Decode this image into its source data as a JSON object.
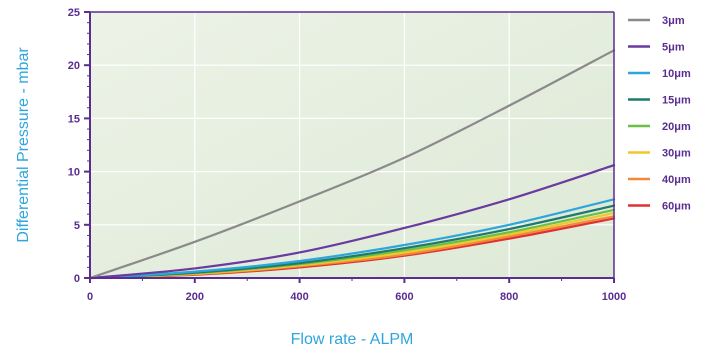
{
  "chart_data": {
    "type": "line",
    "title": "",
    "xlabel": "Flow rate - ALPM",
    "ylabel": "Differential Pressure - mbar",
    "xlim": [
      0,
      1000
    ],
    "ylim": [
      0,
      25
    ],
    "x_ticks": [
      0,
      200,
      400,
      600,
      800,
      1000
    ],
    "y_ticks": [
      0,
      5,
      10,
      15,
      20,
      25
    ],
    "grid": true,
    "legend_position": "right",
    "colors": {
      "plot_background": "#e6efe0",
      "grid": "#ffffff",
      "axis": "#5a2d91",
      "tick_text": "#5a2d91",
      "axis_title": "#2ea6dc"
    },
    "x": [
      0,
      200,
      400,
      600,
      800,
      1000
    ],
    "series": [
      {
        "name": "3μm",
        "color": "#8a8a8a",
        "values": [
          0,
          3.4,
          7.2,
          11.3,
          16.2,
          21.4
        ]
      },
      {
        "name": "5μm",
        "color": "#6a3aa0",
        "values": [
          0,
          0.9,
          2.4,
          4.7,
          7.4,
          10.6
        ]
      },
      {
        "name": "10μm",
        "color": "#2ea6dc",
        "values": [
          0,
          0.6,
          1.6,
          3.1,
          5.0,
          7.4
        ]
      },
      {
        "name": "15μm",
        "color": "#1f7a6e",
        "values": [
          0,
          0.5,
          1.4,
          2.8,
          4.6,
          6.8
        ]
      },
      {
        "name": "20μm",
        "color": "#6abf45",
        "values": [
          0,
          0.45,
          1.3,
          2.6,
          4.3,
          6.4
        ]
      },
      {
        "name": "30μm",
        "color": "#f2c72a",
        "values": [
          0,
          0.4,
          1.2,
          2.4,
          4.1,
          6.1
        ]
      },
      {
        "name": "40μm",
        "color": "#f08a3a",
        "values": [
          0,
          0.35,
          1.1,
          2.2,
          3.9,
          5.8
        ]
      },
      {
        "name": "60μm",
        "color": "#e03030",
        "values": [
          0,
          0.3,
          1.0,
          2.1,
          3.7,
          5.6
        ]
      }
    ]
  }
}
